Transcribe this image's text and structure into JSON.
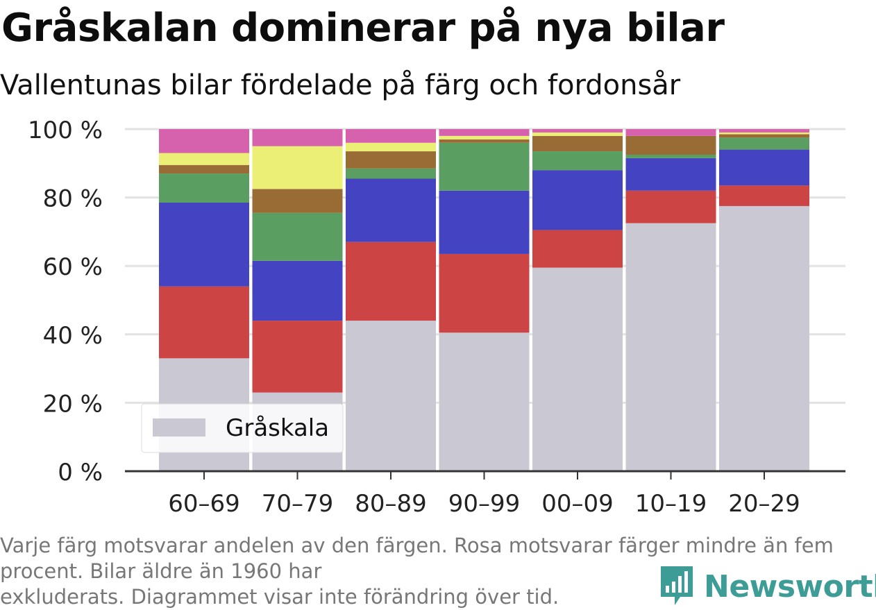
{
  "title": "Gråskalan dominerar på nya bilar",
  "subtitle": "Vallentunas bilar fördelade på färg och fordonsår",
  "footnote": "Varje färg motsvarar andelen av den färgen. Rosa motsvarar färger mindre än fem procent. Bilar äldre än 1960 har\nexkluderats. Diagrammet visar inte förändring över tid.",
  "brand": "Newsworthy",
  "colors": {
    "grey": "#c9c8d3",
    "red": "#cc4444",
    "blue": "#4444c2",
    "green": "#5b9e62",
    "brown": "#9a6c35",
    "yellow": "#ecef76",
    "pink": "#d661ac",
    "brand": "#3d9c95"
  },
  "chart_data": {
    "type": "bar",
    "stacked": true,
    "categories": [
      "60–69",
      "70–79",
      "80–89",
      "90–99",
      "00–09",
      "10–19",
      "20–29"
    ],
    "ylim": [
      0,
      100
    ],
    "yticks": [
      0,
      20,
      40,
      60,
      80,
      100
    ],
    "ytick_labels": [
      "0 %",
      "20 %",
      "40 %",
      "60 %",
      "80 %",
      "100 %"
    ],
    "series": [
      {
        "name": "Gråskala",
        "color_key": "grey",
        "values": [
          33,
          23,
          44,
          40.5,
          59.5,
          72.5,
          77.5
        ]
      },
      {
        "color_key": "red",
        "values": [
          21,
          21,
          23,
          23,
          11,
          9.5,
          6
        ]
      },
      {
        "color_key": "blue",
        "values": [
          24.5,
          17.5,
          18.5,
          18.5,
          17.5,
          9.5,
          10.5
        ]
      },
      {
        "color_key": "green",
        "values": [
          8.5,
          14,
          3,
          14,
          5.5,
          1,
          3.5
        ]
      },
      {
        "color_key": "brown",
        "values": [
          2.5,
          7,
          5,
          1,
          4.5,
          5.5,
          1
        ]
      },
      {
        "color_key": "yellow",
        "values": [
          3.5,
          12.5,
          2.5,
          1,
          1,
          0,
          0.5
        ]
      },
      {
        "color_key": "pink",
        "values": [
          7,
          5,
          4,
          2,
          1,
          2,
          1
        ]
      }
    ],
    "legend": {
      "placement": "bottom-left",
      "entries": [
        "Gråskala"
      ]
    },
    "grid": true
  }
}
